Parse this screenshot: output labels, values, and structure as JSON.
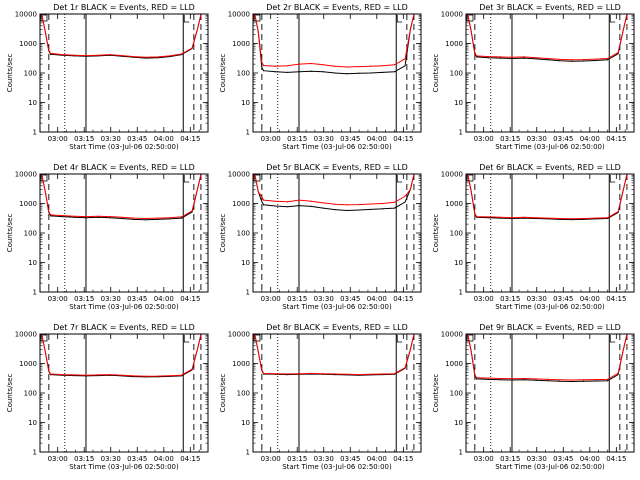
{
  "figure": {
    "x_ticks": [
      "03:00",
      "03:15",
      "03:30",
      "03:45",
      "04:00",
      "04:15"
    ],
    "y_ticks": [
      "1",
      "10",
      "100",
      "1000",
      "10000"
    ],
    "ylabel": "Counts/sec",
    "xlabel": "Start Time (03-Jul-06 02:50:00)",
    "colors": {
      "events": "#000000",
      "lld": "#ff0000"
    }
  },
  "chart_data": [
    {
      "type": "line",
      "title": "Det 1r BLACK = Events, RED = LLD",
      "xlabel": "Start Time (03-Jul-06 02:50:00)",
      "ylabel": "Counts/sec",
      "yscale": "log",
      "ylim": [
        1,
        10000
      ],
      "xlim_minutes_after_start": [
        0,
        95
      ],
      "series": [
        {
          "name": "Events",
          "values": [
            430,
            400,
            380,
            370,
            380,
            400,
            370,
            340,
            320,
            330,
            360,
            420
          ]
        },
        {
          "name": "LLD",
          "values": [
            460,
            420,
            400,
            390,
            400,
            420,
            390,
            360,
            340,
            350,
            380,
            440
          ]
        }
      ],
      "vlines": {
        "dashed": [
          5,
          87,
          91
        ],
        "dotted": [
          14
        ],
        "solid": [
          26
        ],
        "box_left": [
          81
        ]
      }
    },
    {
      "type": "line",
      "title": "Det 2r BLACK = Events, RED = LLD",
      "xlabel": "Start Time (03-Jul-06 02:50:00)",
      "ylabel": "Counts/sec",
      "yscale": "log",
      "ylim": [
        1,
        10000
      ],
      "xlim_minutes_after_start": [
        0,
        95
      ],
      "series": [
        {
          "name": "Events",
          "values": [
            120,
            110,
            105,
            110,
            115,
            110,
            100,
            95,
            98,
            100,
            105,
            110
          ]
        },
        {
          "name": "LLD",
          "values": [
            180,
            170,
            175,
            200,
            210,
            190,
            170,
            160,
            165,
            170,
            175,
            190
          ]
        }
      ],
      "vlines": {
        "dashed": [
          5,
          87,
          91
        ],
        "dotted": [
          14
        ],
        "solid": [
          26
        ],
        "box_left": [
          81
        ]
      }
    },
    {
      "type": "line",
      "title": "Det 3r BLACK = Events, RED = LLD",
      "xlabel": "Start Time (03-Jul-06 02:50:00)",
      "ylabel": "Counts/sec",
      "yscale": "log",
      "ylim": [
        1,
        10000
      ],
      "xlim_minutes_after_start": [
        0,
        95
      ],
      "series": [
        {
          "name": "Events",
          "values": [
            350,
            330,
            320,
            310,
            320,
            300,
            280,
            260,
            250,
            255,
            265,
            280
          ]
        },
        {
          "name": "LLD",
          "values": [
            380,
            360,
            350,
            340,
            350,
            330,
            310,
            290,
            280,
            285,
            295,
            310
          ]
        }
      ],
      "vlines": {
        "dashed": [
          5,
          87,
          91
        ],
        "dotted": [
          14
        ],
        "solid": [
          26
        ],
        "box_left": [
          81
        ]
      }
    },
    {
      "type": "line",
      "title": "Det 4r BLACK = Events, RED = LLD",
      "xlabel": "Start Time (03-Jul-06 02:50:00)",
      "ylabel": "Counts/sec",
      "yscale": "log",
      "ylim": [
        1,
        10000
      ],
      "xlim_minutes_after_start": [
        0,
        95
      ],
      "series": [
        {
          "name": "Events",
          "values": [
            380,
            360,
            340,
            330,
            340,
            330,
            310,
            290,
            280,
            290,
            300,
            320
          ]
        },
        {
          "name": "LLD",
          "values": [
            410,
            390,
            370,
            360,
            370,
            360,
            340,
            320,
            310,
            320,
            330,
            350
          ]
        }
      ],
      "vlines": {
        "dashed": [
          5,
          87,
          91
        ],
        "dotted": [
          14
        ],
        "solid": [
          26
        ],
        "box_left": [
          81
        ]
      }
    },
    {
      "type": "line",
      "title": "Det 5r BLACK = Events, RED = LLD",
      "xlabel": "Start Time (03-Jul-06 02:50:00)",
      "ylabel": "Counts/sec",
      "yscale": "log",
      "ylim": [
        1,
        10000
      ],
      "xlim_minutes_after_start": [
        0,
        95
      ],
      "series": [
        {
          "name": "Events",
          "values": [
            900,
            820,
            780,
            850,
            800,
            700,
            620,
            580,
            600,
            630,
            660,
            700
          ]
        },
        {
          "name": "LLD",
          "values": [
            1300,
            1200,
            1150,
            1300,
            1200,
            1050,
            950,
            900,
            920,
            960,
            1000,
            1100
          ]
        }
      ],
      "vlines": {
        "dashed": [
          5,
          87,
          91
        ],
        "dotted": [
          14
        ],
        "solid": [
          26
        ],
        "box_left": [
          81
        ]
      }
    },
    {
      "type": "line",
      "title": "Det 6r BLACK = Events, RED = LLD",
      "xlabel": "Start Time (03-Jul-06 02:50:00)",
      "ylabel": "Counts/sec",
      "yscale": "log",
      "ylim": [
        1,
        10000
      ],
      "xlim_minutes_after_start": [
        0,
        95
      ],
      "series": [
        {
          "name": "Events",
          "values": [
            340,
            330,
            320,
            310,
            320,
            310,
            300,
            290,
            285,
            290,
            300,
            310
          ]
        },
        {
          "name": "LLD",
          "values": [
            360,
            350,
            340,
            330,
            340,
            330,
            320,
            310,
            305,
            310,
            320,
            330
          ]
        }
      ],
      "vlines": {
        "dashed": [
          5,
          87,
          91
        ],
        "dotted": [
          14
        ],
        "solid": [
          26
        ],
        "box_left": [
          81
        ]
      }
    },
    {
      "type": "line",
      "title": "Det 7r BLACK = Events, RED = LLD",
      "xlabel": "Start Time (03-Jul-06 02:50:00)",
      "ylabel": "Counts/sec",
      "yscale": "log",
      "ylim": [
        1,
        10000
      ],
      "xlim_minutes_after_start": [
        0,
        95
      ],
      "series": [
        {
          "name": "Events",
          "values": [
            420,
            400,
            390,
            380,
            390,
            400,
            380,
            360,
            350,
            355,
            365,
            380
          ]
        },
        {
          "name": "LLD",
          "values": [
            440,
            420,
            410,
            400,
            410,
            420,
            400,
            380,
            370,
            375,
            385,
            400
          ]
        }
      ],
      "vlines": {
        "dashed": [
          5,
          87,
          91
        ],
        "dotted": [
          14
        ],
        "solid": [
          26
        ],
        "box_left": [
          81
        ]
      }
    },
    {
      "type": "line",
      "title": "Det 8r BLACK = Events, RED = LLD",
      "xlabel": "Start Time (03-Jul-06 02:50:00)",
      "ylabel": "Counts/sec",
      "yscale": "log",
      "ylim": [
        1,
        10000
      ],
      "xlim_minutes_after_start": [
        0,
        95
      ],
      "series": [
        {
          "name": "Events",
          "values": [
            440,
            430,
            420,
            430,
            440,
            430,
            420,
            410,
            400,
            410,
            420,
            430
          ]
        },
        {
          "name": "LLD",
          "values": [
            460,
            450,
            440,
            450,
            460,
            450,
            440,
            430,
            420,
            430,
            440,
            450
          ]
        }
      ],
      "vlines": {
        "dashed": [
          5,
          87,
          91
        ],
        "dotted": [
          14
        ],
        "solid": [
          26
        ],
        "box_left": [
          81
        ]
      }
    },
    {
      "type": "line",
      "title": "Det 9r BLACK = Events, RED = LLD",
      "xlabel": "Start Time (03-Jul-06 02:50:00)",
      "ylabel": "Counts/sec",
      "yscale": "log",
      "ylim": [
        1,
        10000
      ],
      "xlim_minutes_after_start": [
        0,
        95
      ],
      "series": [
        {
          "name": "Events",
          "values": [
            300,
            290,
            280,
            275,
            280,
            270,
            260,
            250,
            245,
            250,
            255,
            260
          ]
        },
        {
          "name": "LLD",
          "values": [
            330,
            320,
            310,
            305,
            310,
            300,
            290,
            280,
            275,
            280,
            285,
            290
          ]
        }
      ],
      "vlines": {
        "dashed": [
          5,
          87,
          91
        ],
        "dotted": [
          14
        ],
        "solid": [
          26
        ],
        "box_left": [
          81
        ]
      }
    }
  ]
}
